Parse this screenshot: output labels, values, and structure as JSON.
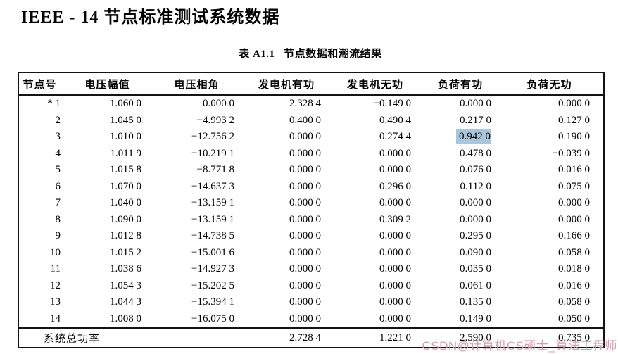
{
  "page": {
    "title": "IEEE - 14 节点标准测试系统数据",
    "caption": "表 A1.1   节点数据和潮流结果",
    "watermark": "CSDN@计算机CS硕士_算法工程师",
    "watermark_color": "#d2a0aa",
    "text_color": "#000000",
    "background_color": "#ffffff"
  },
  "table": {
    "columns": [
      "节点号",
      "电压幅值",
      "电压相角",
      "发电机有功",
      "发电机无功",
      "负荷有功",
      "负荷无功"
    ],
    "rows": [
      [
        "* 1",
        "1.060 0",
        "0.000 0",
        "2.328 4",
        "−0.149 0",
        "0.000 0",
        "0.000 0"
      ],
      [
        "2",
        "1.045 0",
        "−4.993 2",
        "0.400 0",
        "0.490 4",
        "0.217 0",
        "0.127 0"
      ],
      [
        "3",
        "1.010 0",
        "−12.756 2",
        "0.000 0",
        "0.274 4",
        "0.942 0",
        "0.190 0"
      ],
      [
        "4",
        "1.011 9",
        "−10.219 1",
        "0.000 0",
        "0.000 0",
        "0.478 0",
        "−0.039 0"
      ],
      [
        "5",
        "1.015 8",
        "−8.771 8",
        "0.000 0",
        "0.000 0",
        "0.076 0",
        "0.016 0"
      ],
      [
        "6",
        "1.070 0",
        "−14.637 3",
        "0.000 0",
        "0.296 0",
        "0.112 0",
        "0.075 0"
      ],
      [
        "7",
        "1.040 0",
        "−13.159 1",
        "0.000 0",
        "0.000 0",
        "0.000 0",
        "0.000 0"
      ],
      [
        "8",
        "1.090 0",
        "−13.159 1",
        "0.000 0",
        "0.309 2",
        "0.000 0",
        "0.000 0"
      ],
      [
        "9",
        "1.012 8",
        "−14.738 5",
        "0.000 0",
        "0.000 0",
        "0.295 0",
        "0.166 0"
      ],
      [
        "10",
        "1.015 2",
        "−15.001 6",
        "0.000 0",
        "0.000 0",
        "0.090 0",
        "0.058 0"
      ],
      [
        "11",
        "1.038 6",
        "−14.927 3",
        "0.000 0",
        "0.000 0",
        "0.035 0",
        "0.018 0"
      ],
      [
        "12",
        "1.054 3",
        "−15.202 5",
        "0.000 0",
        "0.000 0",
        "0.061 0",
        "0.016 0"
      ],
      [
        "13",
        "1.044 3",
        "−15.394 1",
        "0.000 0",
        "0.000 0",
        "0.135 0",
        "0.058 0"
      ],
      [
        "14",
        "1.008 0",
        "−16.075 0",
        "0.000 0",
        "0.000 0",
        "0.149 0",
        "0.050 0"
      ]
    ],
    "footer": {
      "label": "系统总功率",
      "values": [
        "2.728 4",
        "1.221 0",
        "2.590 0",
        "0.735 0"
      ]
    },
    "highlight": {
      "row_index": 2,
      "col_index": 5,
      "color": "#a9c6dd"
    }
  }
}
